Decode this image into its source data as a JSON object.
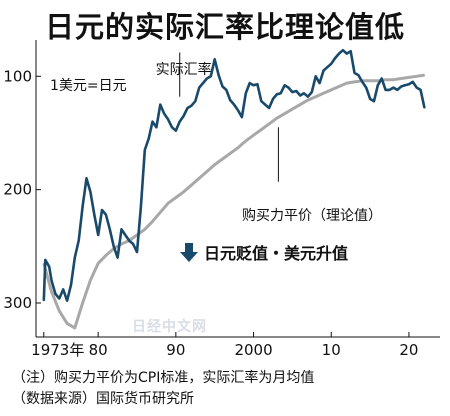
{
  "chart_data": {
    "type": "line",
    "title": "日元的实际汇率比理论值低",
    "y_axis": {
      "inverted": true,
      "ylim": [
        330,
        68
      ],
      "ticks": [
        100,
        200,
        300
      ]
    },
    "x_axis": {
      "xlim": [
        1972,
        2024
      ],
      "ticks": [
        1973,
        1980,
        1990,
        2000,
        2010,
        2020
      ],
      "tick_labels": [
        "1973年",
        "80",
        "90",
        "2000",
        "10",
        "20"
      ]
    },
    "grid": false,
    "series": [
      {
        "name": "实际汇率",
        "unit_label": "1美元=日元",
        "color": "#1a4a6b",
        "points": [
          [
            1973,
            298
          ],
          [
            1973.2,
            262
          ],
          [
            1973.7,
            268
          ],
          [
            1974,
            280
          ],
          [
            1974.5,
            292
          ],
          [
            1975,
            296
          ],
          [
            1975.5,
            288
          ],
          [
            1976,
            298
          ],
          [
            1976.5,
            284
          ],
          [
            1977,
            260
          ],
          [
            1977.5,
            245
          ],
          [
            1978,
            215
          ],
          [
            1978.5,
            190
          ],
          [
            1979,
            202
          ],
          [
            1979.5,
            222
          ],
          [
            1980,
            240
          ],
          [
            1980.5,
            218
          ],
          [
            1981,
            222
          ],
          [
            1981.5,
            235
          ],
          [
            1982,
            250
          ],
          [
            1982.5,
            260
          ],
          [
            1983,
            235
          ],
          [
            1983.5,
            240
          ],
          [
            1984,
            245
          ],
          [
            1984.5,
            248
          ],
          [
            1985,
            255
          ],
          [
            1985.5,
            215
          ],
          [
            1986,
            165
          ],
          [
            1986.5,
            155
          ],
          [
            1987,
            140
          ],
          [
            1987.5,
            145
          ],
          [
            1988,
            125
          ],
          [
            1988.5,
            133
          ],
          [
            1989,
            138
          ],
          [
            1989.5,
            145
          ],
          [
            1990,
            148
          ],
          [
            1990.5,
            140
          ],
          [
            1991,
            135
          ],
          [
            1991.5,
            128
          ],
          [
            1992,
            126
          ],
          [
            1992.5,
            122
          ],
          [
            1993,
            110
          ],
          [
            1993.5,
            106
          ],
          [
            1994,
            102
          ],
          [
            1994.5,
            100
          ],
          [
            1995,
            85
          ],
          [
            1995.5,
            99
          ],
          [
            1996,
            109
          ],
          [
            1996.5,
            112
          ],
          [
            1997,
            121
          ],
          [
            1997.5,
            125
          ],
          [
            1998,
            130
          ],
          [
            1998.5,
            136
          ],
          [
            1999,
            115
          ],
          [
            1999.5,
            106
          ],
          [
            2000,
            108
          ],
          [
            2000.5,
            107
          ],
          [
            2001,
            122
          ],
          [
            2001.5,
            125
          ],
          [
            2002,
            128
          ],
          [
            2002.5,
            120
          ],
          [
            2003,
            116
          ],
          [
            2003.5,
            115
          ],
          [
            2004,
            108
          ],
          [
            2004.5,
            110
          ],
          [
            2005,
            114
          ],
          [
            2005.5,
            113
          ],
          [
            2006,
            117
          ],
          [
            2006.5,
            115
          ],
          [
            2007,
            118
          ],
          [
            2007.5,
            114
          ],
          [
            2008,
            100
          ],
          [
            2008.5,
            106
          ],
          [
            2009,
            95
          ],
          [
            2009.5,
            92
          ],
          [
            2010,
            89
          ],
          [
            2010.5,
            84
          ],
          [
            2011,
            80
          ],
          [
            2011.5,
            77
          ],
          [
            2012,
            80
          ],
          [
            2012.5,
            78
          ],
          [
            2013,
            97
          ],
          [
            2013.5,
            99
          ],
          [
            2014,
            105
          ],
          [
            2014.5,
            110
          ],
          [
            2015,
            120
          ],
          [
            2015.5,
            122
          ],
          [
            2016,
            108
          ],
          [
            2016.5,
            102
          ],
          [
            2017,
            112
          ],
          [
            2017.5,
            112
          ],
          [
            2018,
            110
          ],
          [
            2018.5,
            112
          ],
          [
            2019,
            109
          ],
          [
            2019.5,
            108
          ],
          [
            2020,
            107
          ],
          [
            2020.5,
            105
          ],
          [
            2021,
            110
          ],
          [
            2021.5,
            112
          ],
          [
            2022,
            128
          ]
        ]
      },
      {
        "name": "购买力平价（理论值）",
        "color": "#a8a8a8",
        "points": [
          [
            1973,
            265
          ],
          [
            1974,
            290
          ],
          [
            1975,
            307
          ],
          [
            1976,
            318
          ],
          [
            1977,
            322
          ],
          [
            1978,
            300
          ],
          [
            1979,
            280
          ],
          [
            1980,
            265
          ],
          [
            1981,
            258
          ],
          [
            1982,
            252
          ],
          [
            1983,
            248
          ],
          [
            1984,
            245
          ],
          [
            1985,
            240
          ],
          [
            1986,
            235
          ],
          [
            1987,
            228
          ],
          [
            1988,
            220
          ],
          [
            1989,
            212
          ],
          [
            1990,
            207
          ],
          [
            1991,
            202
          ],
          [
            1992,
            196
          ],
          [
            1993,
            190
          ],
          [
            1994,
            184
          ],
          [
            1995,
            178
          ],
          [
            1996,
            173
          ],
          [
            1997,
            168
          ],
          [
            1998,
            163
          ],
          [
            1999,
            157
          ],
          [
            2000,
            152
          ],
          [
            2001,
            147
          ],
          [
            2002,
            142
          ],
          [
            2003,
            137
          ],
          [
            2004,
            133
          ],
          [
            2005,
            129
          ],
          [
            2006,
            125
          ],
          [
            2007,
            121
          ],
          [
            2008,
            118
          ],
          [
            2009,
            115
          ],
          [
            2010,
            112
          ],
          [
            2011,
            109
          ],
          [
            2012,
            106
          ],
          [
            2013,
            105
          ],
          [
            2014,
            104
          ],
          [
            2015,
            104
          ],
          [
            2016,
            104
          ],
          [
            2017,
            103
          ],
          [
            2018,
            103
          ],
          [
            2019,
            102
          ],
          [
            2020,
            101
          ],
          [
            2021,
            100
          ],
          [
            2022,
            99
          ]
        ]
      }
    ],
    "annotations": {
      "actual": "实际汇率",
      "ppp": "购买力平价（理论值）",
      "unit": "1美元=日元",
      "direction": "日元贬值・美元升值"
    }
  },
  "watermark": "日经中文网",
  "notes": {
    "line1": "（注）购买力平价为CPI标准，实际汇率为月均值",
    "line2": "（数据来源）国际货币研究所"
  },
  "colors": {
    "actual": "#1a4a6b",
    "ppp": "#a8a8a8",
    "arrow": "#1a4a6b"
  }
}
